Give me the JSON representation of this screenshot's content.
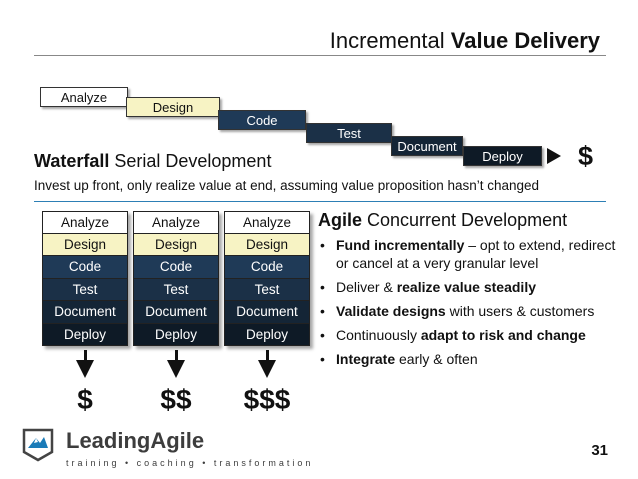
{
  "slide": {
    "title_prefix": "Incremental ",
    "title_bold": "Value Delivery",
    "page_number": "31"
  },
  "waterfall": {
    "steps": [
      "Analyze",
      "Design",
      "Code",
      "Test",
      "Document",
      "Deploy"
    ],
    "result": "$",
    "heading_bold": "Waterfall",
    "heading_rest": " Serial Development",
    "description": "Invest up front, only realize value at end, assuming value proposition hasn’t changed"
  },
  "agile": {
    "stacks": [
      {
        "cells": [
          "Analyze",
          "Design",
          "Code",
          "Test",
          "Document",
          "Deploy"
        ],
        "result": "$"
      },
      {
        "cells": [
          "Analyze",
          "Design",
          "Code",
          "Test",
          "Document",
          "Deploy"
        ],
        "result": "$$"
      },
      {
        "cells": [
          "Analyze",
          "Design",
          "Code",
          "Test",
          "Document",
          "Deploy"
        ],
        "result": "$$$"
      }
    ],
    "heading_bold": "Agile",
    "heading_rest": " Concurrent Development",
    "bullets": [
      {
        "parts": [
          {
            "t": "Fund incrementally",
            "b": true
          },
          {
            "t": " – opt to extend, redirect or cancel at a very granular level",
            "b": false
          }
        ]
      },
      {
        "parts": [
          {
            "t": "Deliver & ",
            "b": false
          },
          {
            "t": "realize value steadily",
            "b": true
          }
        ]
      },
      {
        "parts": [
          {
            "t": "Validate designs",
            "b": true
          },
          {
            "t": " with users & customers",
            "b": false
          }
        ]
      },
      {
        "parts": [
          {
            "t": "Continuously ",
            "b": false
          },
          {
            "t": "adapt to risk and change",
            "b": true
          }
        ]
      },
      {
        "parts": [
          {
            "t": "Integrate",
            "b": true
          },
          {
            "t": " early & often",
            "b": false
          }
        ]
      }
    ]
  },
  "colors": {
    "analyze": "#ffffff",
    "design": "#f7f3c4",
    "code": "#1f3a57",
    "test": "#1b3047",
    "document": "#142536",
    "deploy": "#0e1a26",
    "separator": "#2d7fb5"
  },
  "logo": {
    "name": "LeadingAgile",
    "tagline": "training • coaching • transformation"
  }
}
